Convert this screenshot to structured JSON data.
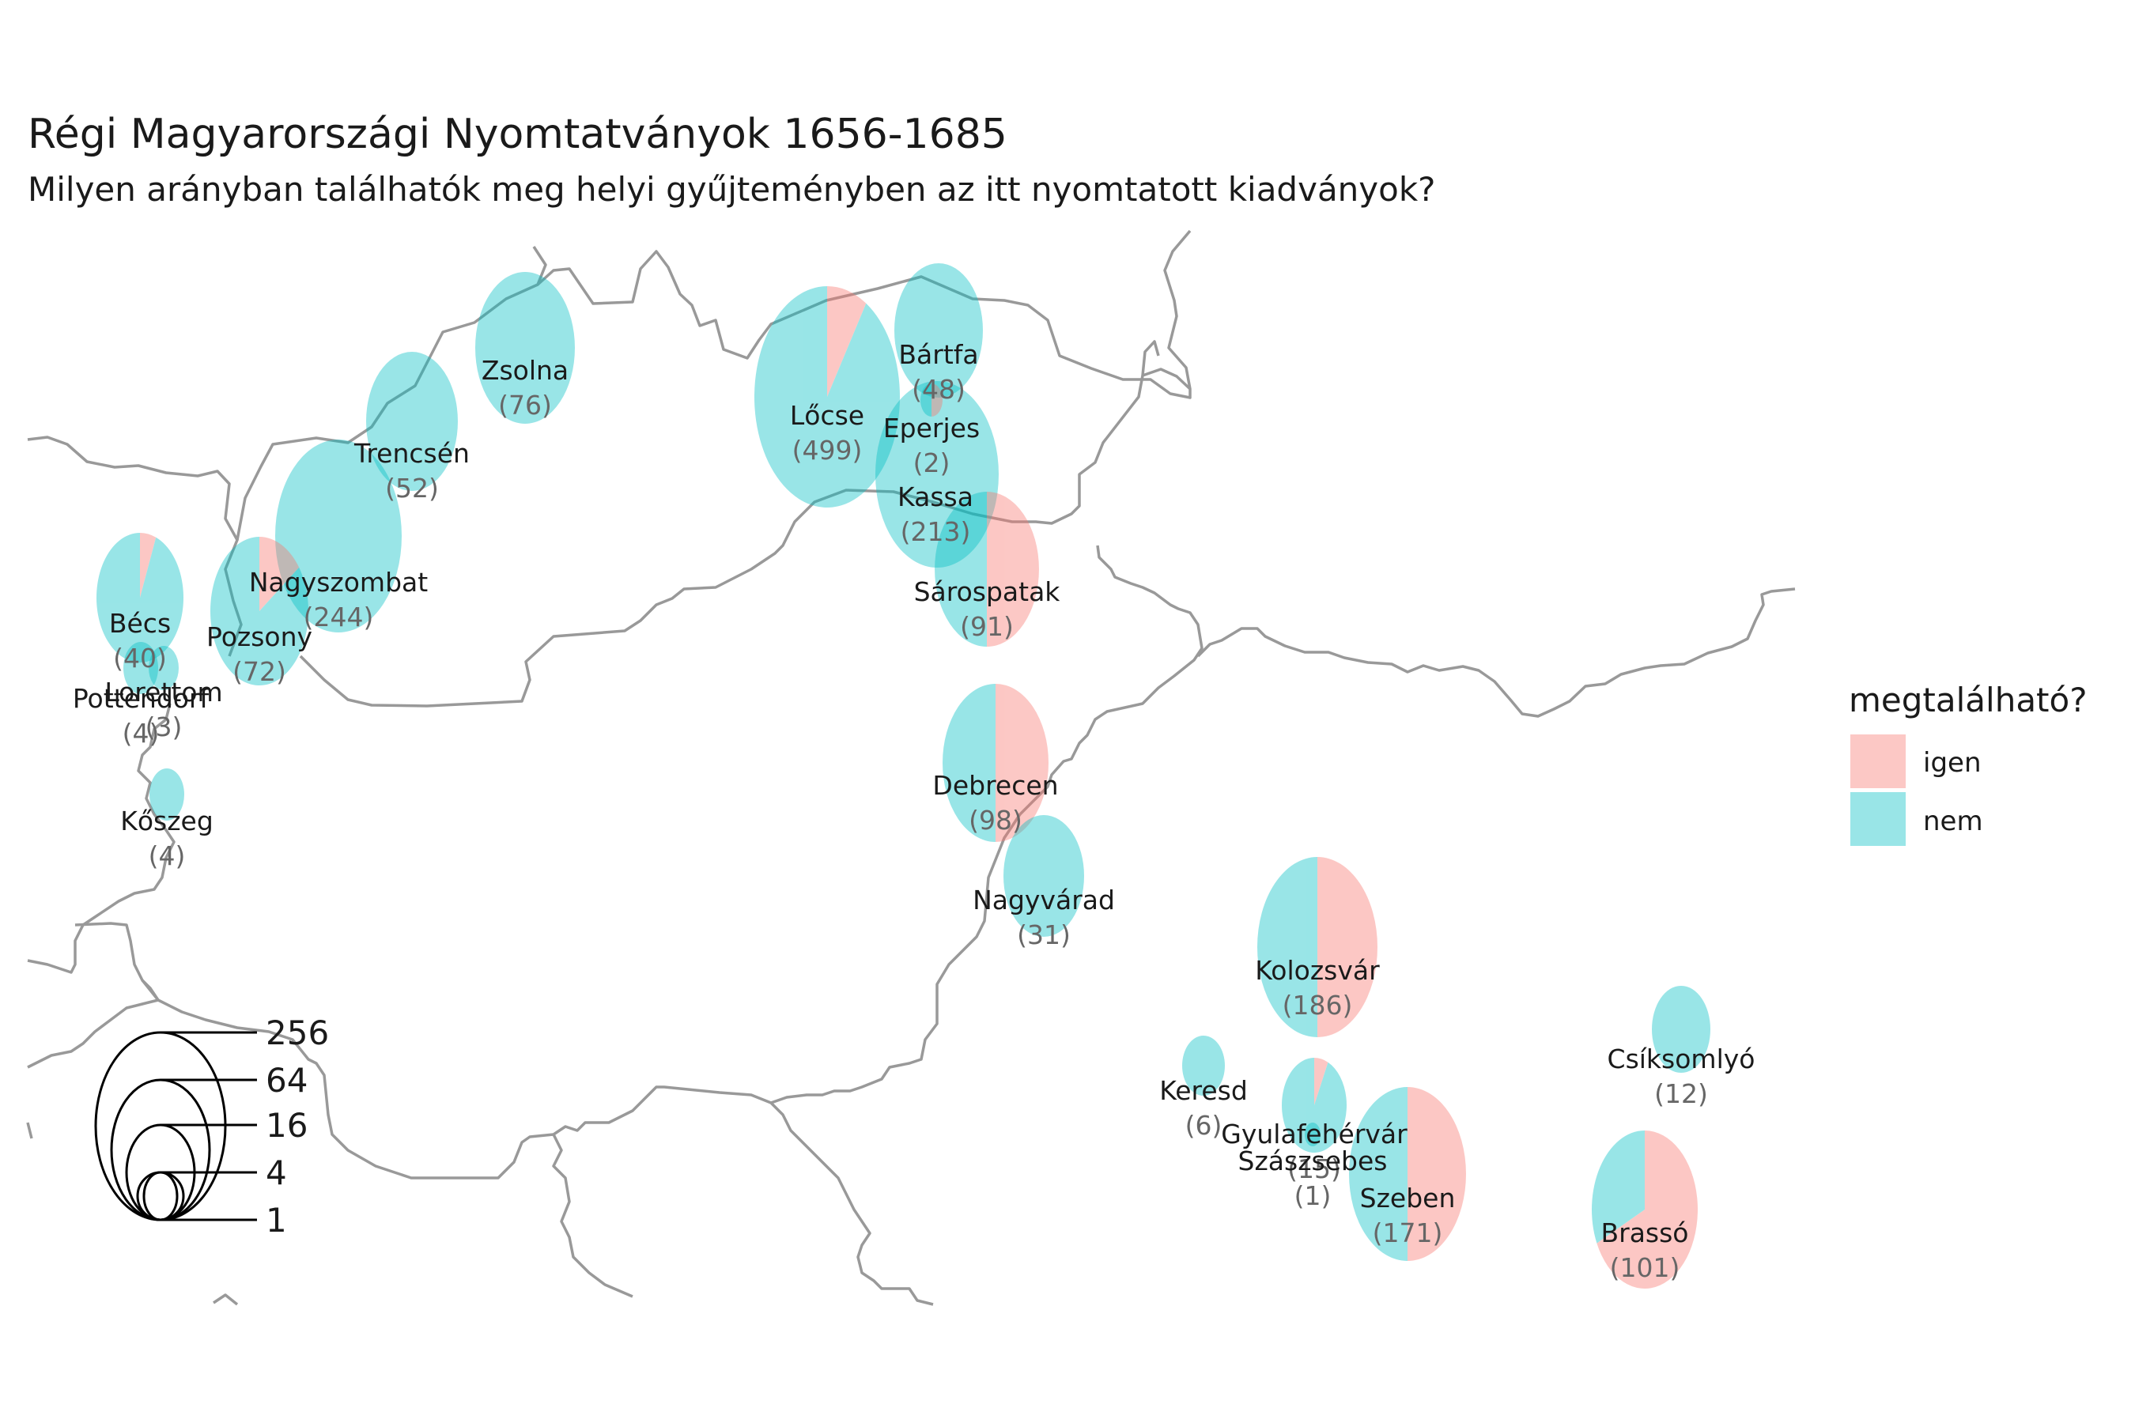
{
  "title": "Régi Magyarországi Nyomtatványok 1656-1685",
  "subtitle": "Milyen arányban találhatók meg helyi gyűjteményben az itt nyomtatott kiadványok?",
  "colors": {
    "igen": "#F8766D",
    "nem": "#00BFC4",
    "border": "#999999"
  },
  "legend": {
    "title": "megtalálható?",
    "items": [
      {
        "key": "igen",
        "label": "igen"
      },
      {
        "key": "nem",
        "label": "nem"
      }
    ]
  },
  "size_legend": {
    "breaks": [
      "256",
      "64",
      "16",
      "4",
      "1"
    ]
  },
  "cities": [
    {
      "name": "Lőcse",
      "count": "(499)",
      "igen_share": 0.09
    },
    {
      "name": "Nagyszombat",
      "count": "(244)",
      "igen_share": 0.0
    },
    {
      "name": "Kassa",
      "count": "(213)",
      "igen_share": 0.0
    },
    {
      "name": "Kolozsvár",
      "count": "(186)",
      "igen_share": 0.5
    },
    {
      "name": "Szeben",
      "count": "(171)",
      "igen_share": 0.5
    },
    {
      "name": "Brassó",
      "count": "(101)",
      "igen_share": 0.68
    },
    {
      "name": "Debrecen",
      "count": "(98)",
      "igen_share": 0.5
    },
    {
      "name": "Sárospatak",
      "count": "(91)",
      "igen_share": 0.5
    },
    {
      "name": "Zsolna",
      "count": "(76)",
      "igen_share": 0.0
    },
    {
      "name": "Pozsony",
      "count": "(72)",
      "igen_share": 0.15
    },
    {
      "name": "Trencsén",
      "count": "(52)",
      "igen_share": 0.0
    },
    {
      "name": "Bártfa",
      "count": "(48)",
      "igen_share": 0.0
    },
    {
      "name": "Bécs",
      "count": "(40)",
      "igen_share": 0.06
    },
    {
      "name": "Nagyvárad",
      "count": "(31)",
      "igen_share": 0.0
    },
    {
      "name": "Gyulafehérvár",
      "count": "(15)",
      "igen_share": 0.07
    },
    {
      "name": "Csíksomlyó",
      "count": "(12)",
      "igen_share": 0.0
    },
    {
      "name": "Keresd",
      "count": "(6)",
      "igen_share": 0.0
    },
    {
      "name": "Kőszeg",
      "count": "(4)",
      "igen_share": 0.0
    },
    {
      "name": "Pottendorf",
      "count": "(4)",
      "igen_share": 0.0
    },
    {
      "name": "Lorettom",
      "count": "(3)",
      "igen_share": 0.0
    },
    {
      "name": "Eperjes",
      "count": "(2)",
      "igen_share": 0.5
    },
    {
      "name": "Szászsebes",
      "count": "(1)",
      "igen_share": 0.0
    }
  ]
}
